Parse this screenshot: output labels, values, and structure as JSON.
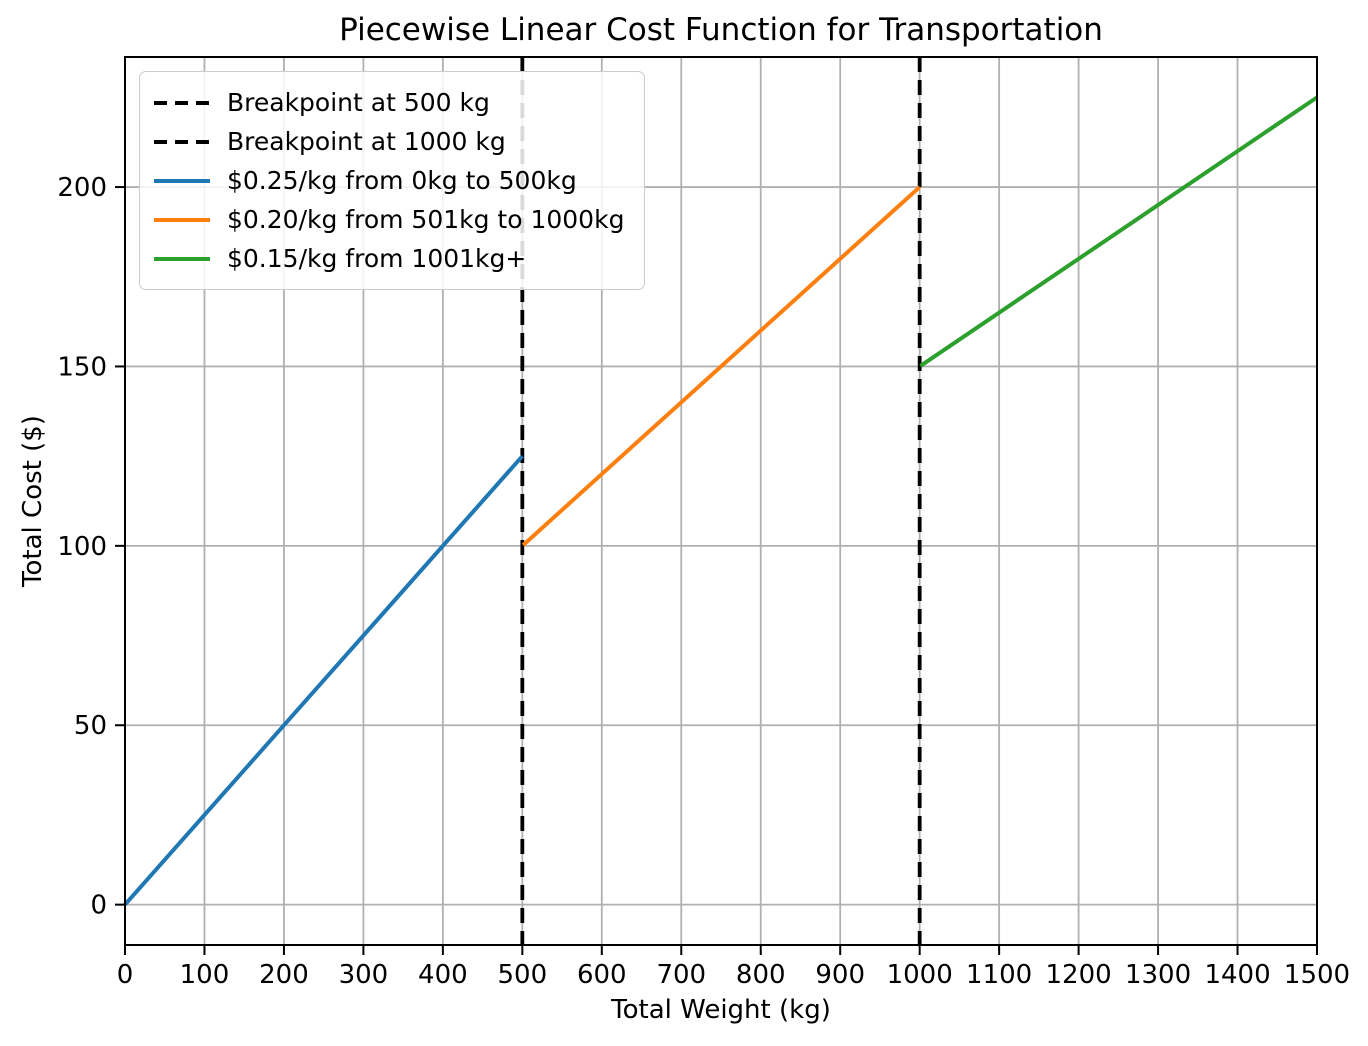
{
  "chart_data": {
    "type": "line",
    "title": "Piecewise Linear Cost Function for Transportation",
    "xlabel": "Total Weight (kg)",
    "ylabel": "Total Cost ($)",
    "xlim": [
      0,
      1500
    ],
    "ylim": [
      -11.25,
      236.25
    ],
    "xticks": [
      0,
      100,
      200,
      300,
      400,
      500,
      600,
      700,
      800,
      900,
      1000,
      1100,
      1200,
      1300,
      1400,
      1500
    ],
    "yticks": [
      0,
      50,
      100,
      150,
      200
    ],
    "grid": true,
    "legend_position": "upper-left",
    "series": [
      {
        "name": "$0.25/kg from 0kg to 500kg",
        "color": "#1f77b4",
        "style": "solid",
        "x": [
          0,
          500
        ],
        "y": [
          0,
          125
        ]
      },
      {
        "name": "$0.20/kg from 501kg to 1000kg",
        "color": "#ff7f0e",
        "style": "solid",
        "x": [
          501,
          1000
        ],
        "y": [
          100.2,
          200
        ]
      },
      {
        "name": "$0.15/kg from 1001kg+",
        "color": "#2ca02c",
        "style": "solid",
        "x": [
          1001,
          1500
        ],
        "y": [
          150.15,
          225
        ]
      }
    ],
    "breakpoints": [
      {
        "label": "Breakpoint at 500 kg",
        "x": 500,
        "color": "#000000",
        "style": "dashed"
      },
      {
        "label": "Breakpoint at 1000 kg",
        "x": 1000,
        "color": "#000000",
        "style": "dashed"
      }
    ],
    "legend": [
      {
        "label": "Breakpoint at 500 kg",
        "color": "#000000",
        "dash": true
      },
      {
        "label": "Breakpoint at 1000 kg",
        "color": "#000000",
        "dash": true
      },
      {
        "label": "$0.25/kg from 0kg to 500kg",
        "color": "#1f77b4",
        "dash": false
      },
      {
        "label": "$0.20/kg from 501kg to 1000kg",
        "color": "#ff7f0e",
        "dash": false
      },
      {
        "label": "$0.15/kg from 1001kg+",
        "color": "#2ca02c",
        "dash": false
      }
    ],
    "colors": {
      "grid": "#b0b0b0",
      "spine": "#000000",
      "tick": "#000000",
      "background": "#ffffff"
    }
  }
}
